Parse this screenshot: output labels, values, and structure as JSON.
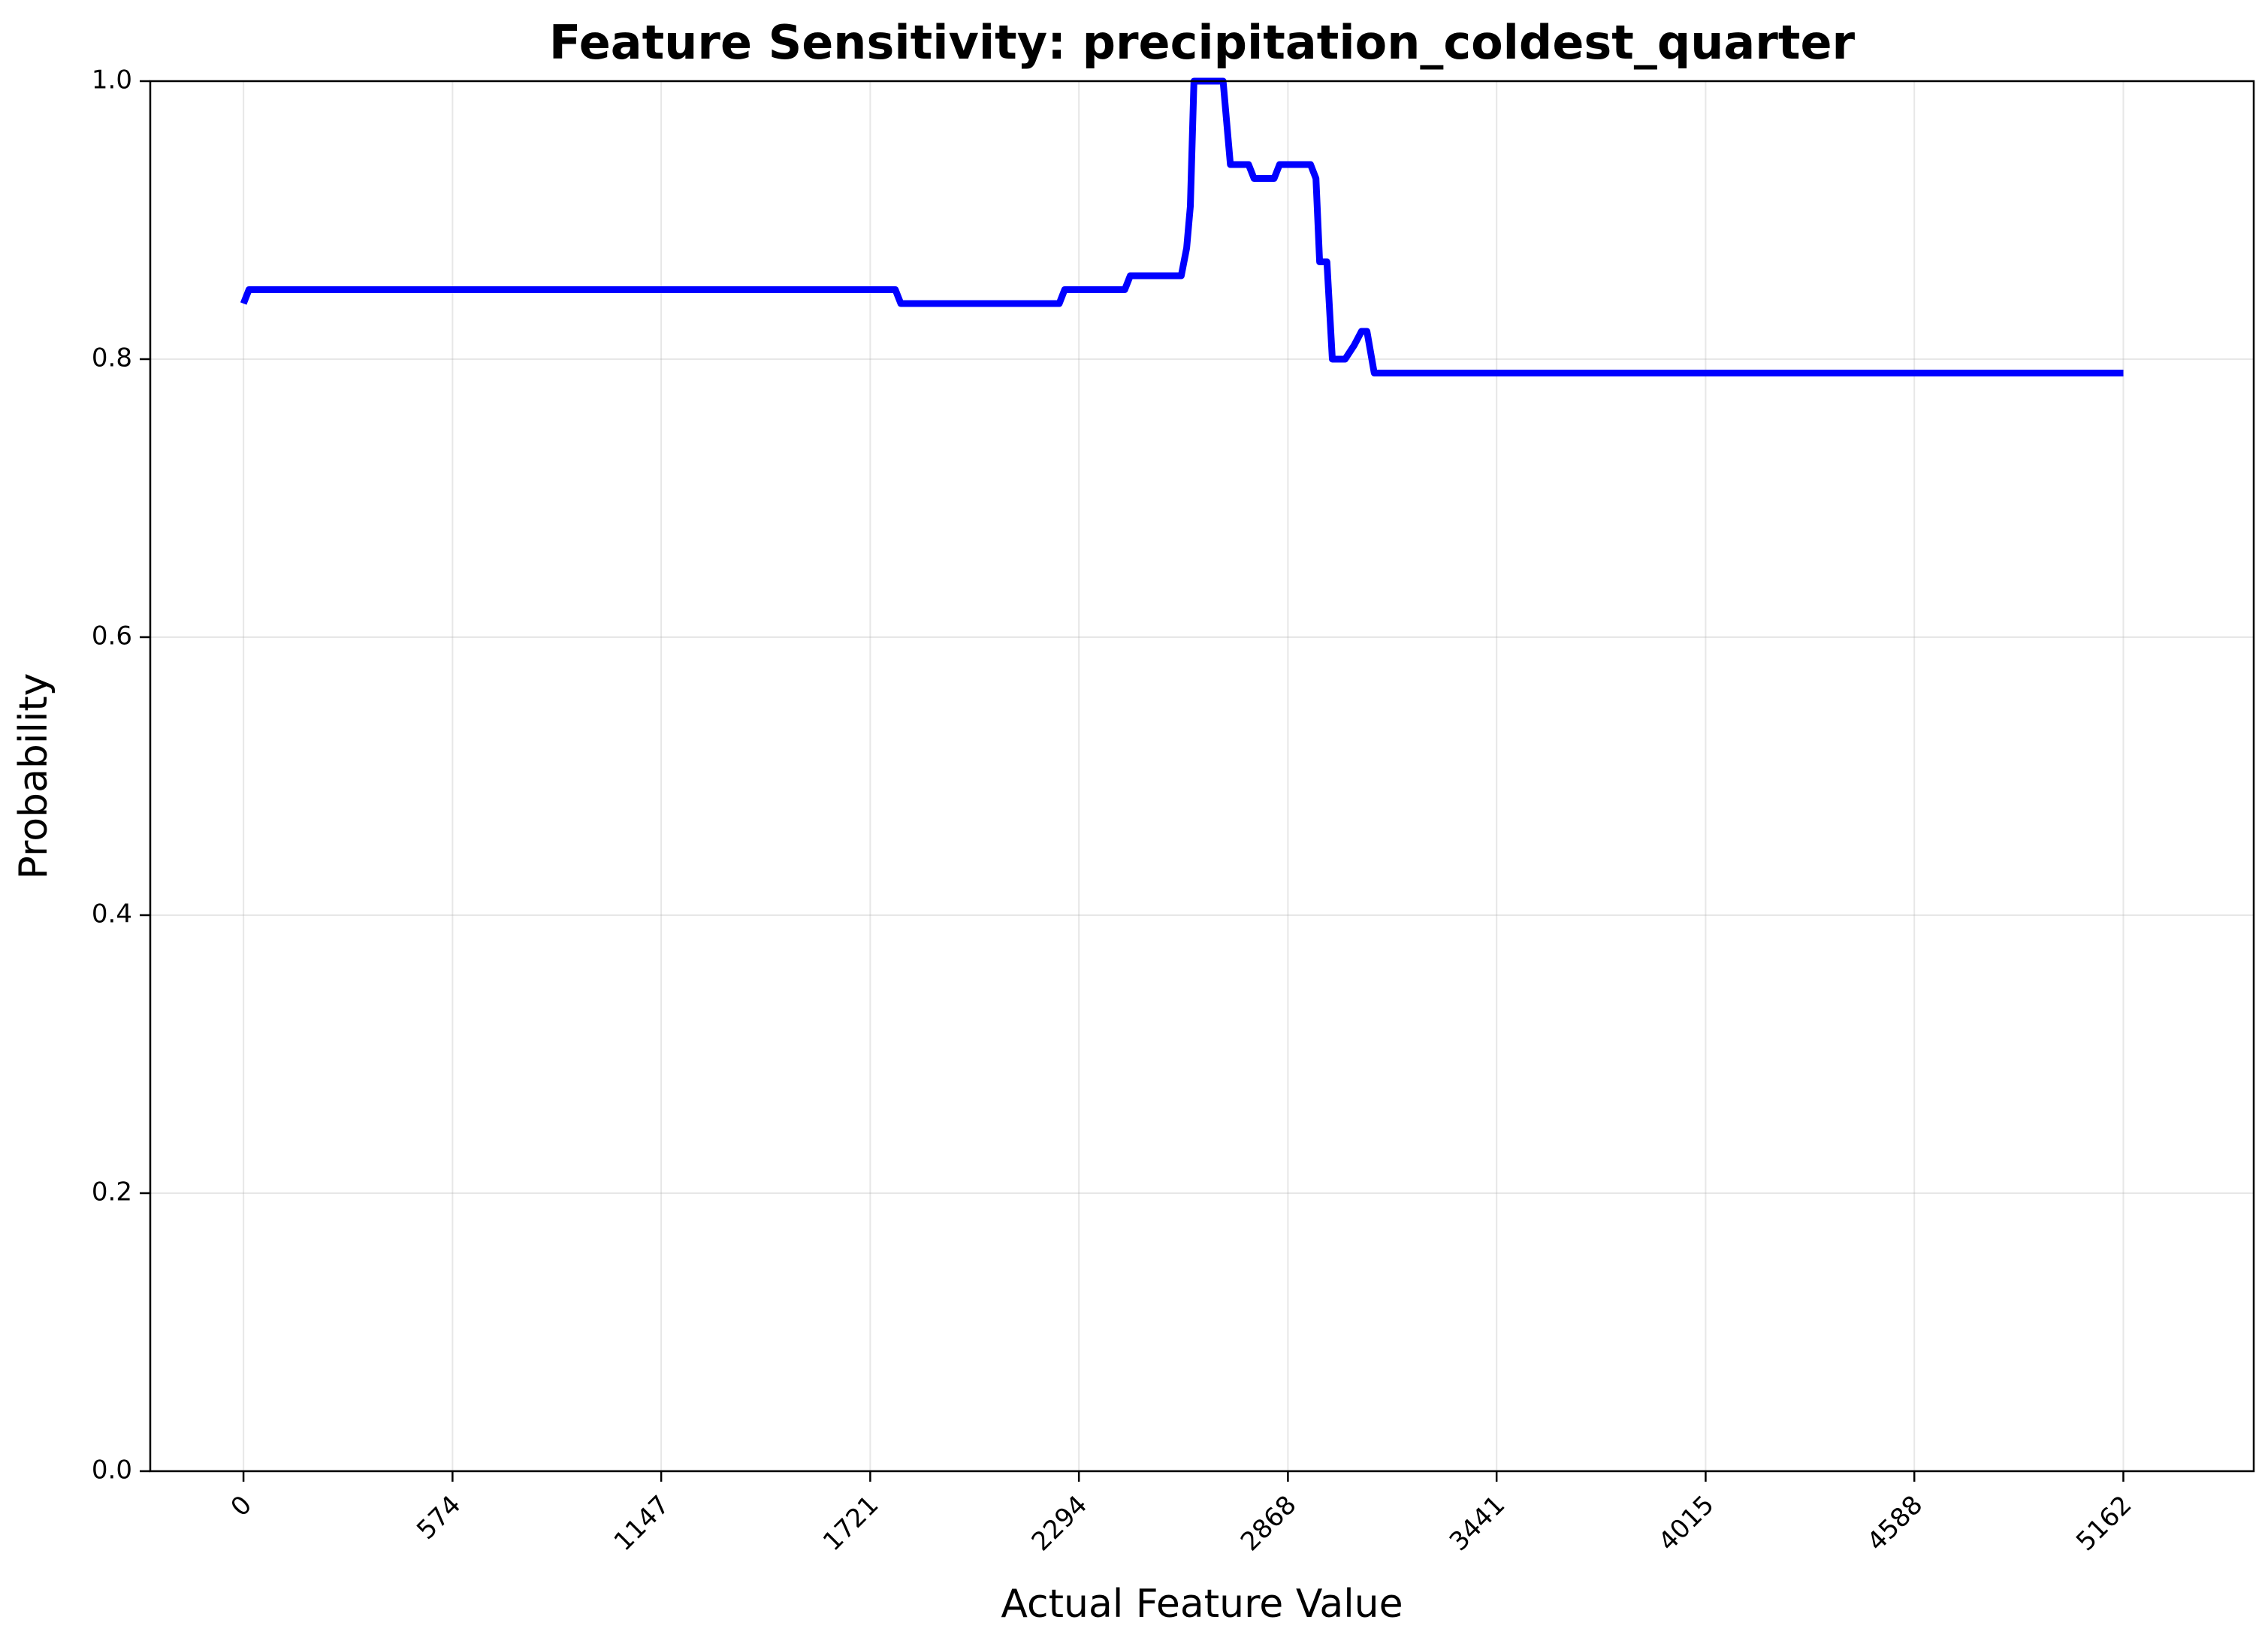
{
  "chart_data": {
    "type": "line",
    "title": "Feature Sensitivity: precipitation_coldest_quarter",
    "xlabel": "Actual Feature Value",
    "ylabel": "Probability",
    "xlim": [
      -256,
      5520
    ],
    "ylim": [
      0.0,
      1.0
    ],
    "grid": true,
    "x_ticks": [
      0,
      574,
      1147,
      1721,
      2294,
      2868,
      3441,
      4015,
      4588,
      5162
    ],
    "x_tick_labels": [
      "0",
      "574",
      "1147",
      "1721",
      "2294",
      "2868",
      "3441",
      "4015",
      "4588",
      "5162"
    ],
    "y_ticks": [
      0.0,
      0.2,
      0.4,
      0.6,
      0.8,
      1.0
    ],
    "y_tick_labels": [
      "0.0",
      "0.2",
      "0.4",
      "0.6",
      "0.8",
      "1.0"
    ],
    "series": [
      {
        "color": "#0000ff",
        "x": [
          0,
          15,
          30,
          1790,
          1805,
          1815,
          2240,
          2255,
          2270,
          2420,
          2435,
          2450,
          2575,
          2590,
          2600,
          2610,
          2630,
          2650,
          2670,
          2690,
          2710,
          2760,
          2775,
          2790,
          2830,
          2845,
          2860,
          2930,
          2945,
          2955,
          2975,
          2990,
          3010,
          3025,
          3050,
          3070,
          3085,
          3105,
          3125,
          3145,
          3162,
          3200,
          5162
        ],
        "y": [
          0.84,
          0.85,
          0.85,
          0.85,
          0.84,
          0.84,
          0.84,
          0.85,
          0.85,
          0.85,
          0.86,
          0.86,
          0.86,
          0.88,
          0.91,
          1.0,
          1.0,
          1.0,
          1.0,
          1.0,
          0.94,
          0.94,
          0.93,
          0.93,
          0.93,
          0.94,
          0.94,
          0.94,
          0.93,
          0.87,
          0.87,
          0.8,
          0.8,
          0.8,
          0.81,
          0.82,
          0.82,
          0.79,
          0.79,
          0.79,
          0.79,
          0.79,
          0.79
        ]
      }
    ]
  }
}
